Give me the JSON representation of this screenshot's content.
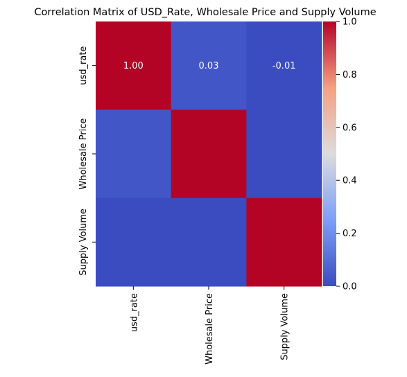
{
  "chart_data": {
    "type": "heatmap",
    "title": "Correlation Matrix of USD_Rate, Wholesale Price and Supply Volume",
    "row_labels": [
      "usd_rate",
      "Wholesale Price",
      "Supply Volume"
    ],
    "col_labels": [
      "usd_rate",
      "Wholesale Price",
      "Supply Volume"
    ],
    "values": [
      [
        1.0,
        0.03,
        -0.01
      ],
      [
        0.03,
        1.0,
        -0.01
      ],
      [
        -0.01,
        -0.01,
        1.0
      ]
    ],
    "annotations": [
      [
        "1.00",
        "0.03",
        "-0.01"
      ]
    ],
    "colormap": "coolwarm",
    "colorbar": {
      "range": [
        0.0,
        1.0
      ],
      "ticks": [
        "0.0",
        "0.2",
        "0.4",
        "0.6",
        "0.8",
        "1.0"
      ]
    }
  }
}
